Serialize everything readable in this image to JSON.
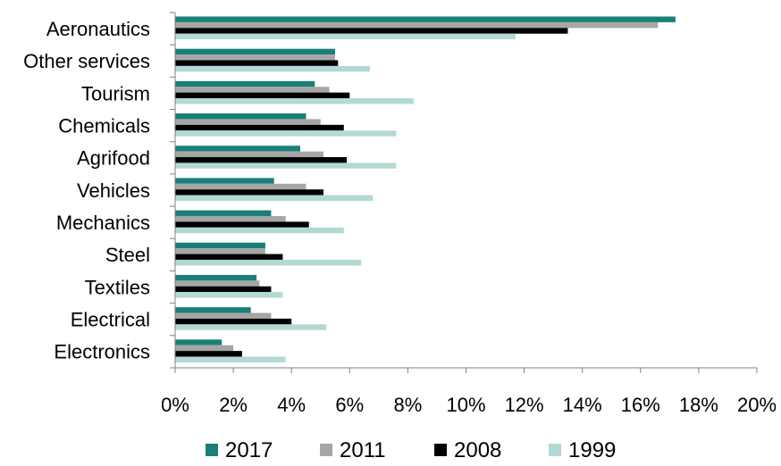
{
  "chart_data": {
    "type": "bar",
    "orientation": "horizontal",
    "categories": [
      "Aeronautics",
      "Other services",
      "Tourism",
      "Chemicals",
      "Agrifood",
      "Vehicles",
      "Mechanics",
      "Steel",
      "Textiles",
      "Electrical",
      "Electronics"
    ],
    "series": [
      {
        "name": "2017",
        "color": "#1a7f78",
        "values": [
          17.2,
          5.5,
          4.8,
          4.5,
          4.3,
          3.4,
          3.3,
          3.1,
          2.8,
          2.6,
          1.6
        ]
      },
      {
        "name": "2011",
        "color": "#a6a6a6",
        "values": [
          16.6,
          5.5,
          5.3,
          5.0,
          5.1,
          4.5,
          3.8,
          3.1,
          2.9,
          3.3,
          2.0
        ]
      },
      {
        "name": "2008",
        "color": "#000000",
        "values": [
          13.5,
          5.6,
          6.0,
          5.8,
          5.9,
          5.1,
          4.6,
          3.7,
          3.3,
          4.0,
          2.3
        ]
      },
      {
        "name": "1999",
        "color": "#b3d9d4",
        "values": [
          11.7,
          6.7,
          8.2,
          7.6,
          7.6,
          6.8,
          5.8,
          6.4,
          3.7,
          5.2,
          3.8
        ]
      }
    ],
    "x_tick_labels": [
      "0%",
      "2%",
      "4%",
      "6%",
      "8%",
      "10%",
      "12%",
      "14%",
      "16%",
      "18%",
      "20%"
    ],
    "xlim": [
      0,
      20
    ],
    "x_unit": "%",
    "grid": false,
    "legend_position": "bottom"
  }
}
